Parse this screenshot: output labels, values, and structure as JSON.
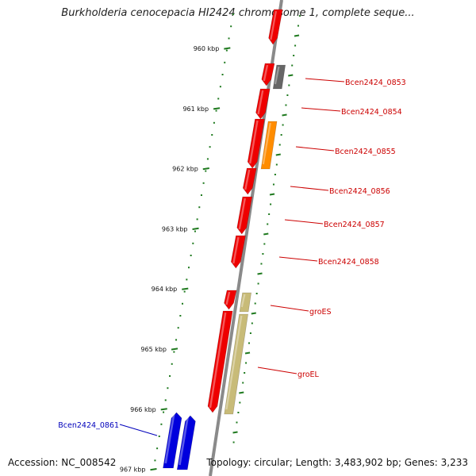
{
  "title": "Burkholderia cenocepacia HI2424 chromosome 1, complete seque...",
  "accession": "Accession: NC_008542",
  "topology": "Topology: circular; Length: 3,483,902 bp; Genes: 3,233",
  "colors": {
    "forward_gene": "#ee0000",
    "reverse_gene": "#0000dd",
    "label_forward": "#cc0000",
    "label_reverse": "#0000bb",
    "backbone": "#888888",
    "gc_track": "#1f7a1f",
    "gray_feature": "#666666",
    "orange_feature": "#ff8c00",
    "tan_feature": "#c8bb78"
  },
  "ruler": {
    "ticks": [
      {
        "kbp": 960,
        "label": "960 kbp"
      },
      {
        "kbp": 961,
        "label": "961 kbp"
      },
      {
        "kbp": 962,
        "label": "962 kbp"
      },
      {
        "kbp": 963,
        "label": "963 kbp"
      },
      {
        "kbp": 964,
        "label": "964 kbp"
      },
      {
        "kbp": 965,
        "label": "965 kbp"
      },
      {
        "kbp": 966,
        "label": "966 kbp"
      },
      {
        "kbp": 967,
        "label": "967 kbp"
      }
    ]
  },
  "genes": [
    {
      "label": "Bcen2424_0853",
      "strand": "forward"
    },
    {
      "label": "Bcen2424_0854",
      "strand": "forward"
    },
    {
      "label": "Bcen2424_0855",
      "strand": "forward"
    },
    {
      "label": "Bcen2424_0856",
      "strand": "forward"
    },
    {
      "label": "Bcen2424_0857",
      "strand": "forward"
    },
    {
      "label": "Bcen2424_0858",
      "strand": "forward"
    },
    {
      "label": "groES",
      "strand": "forward"
    },
    {
      "label": "groEL",
      "strand": "forward"
    },
    {
      "label": "Bcen2424_0861",
      "strand": "reverse"
    }
  ]
}
